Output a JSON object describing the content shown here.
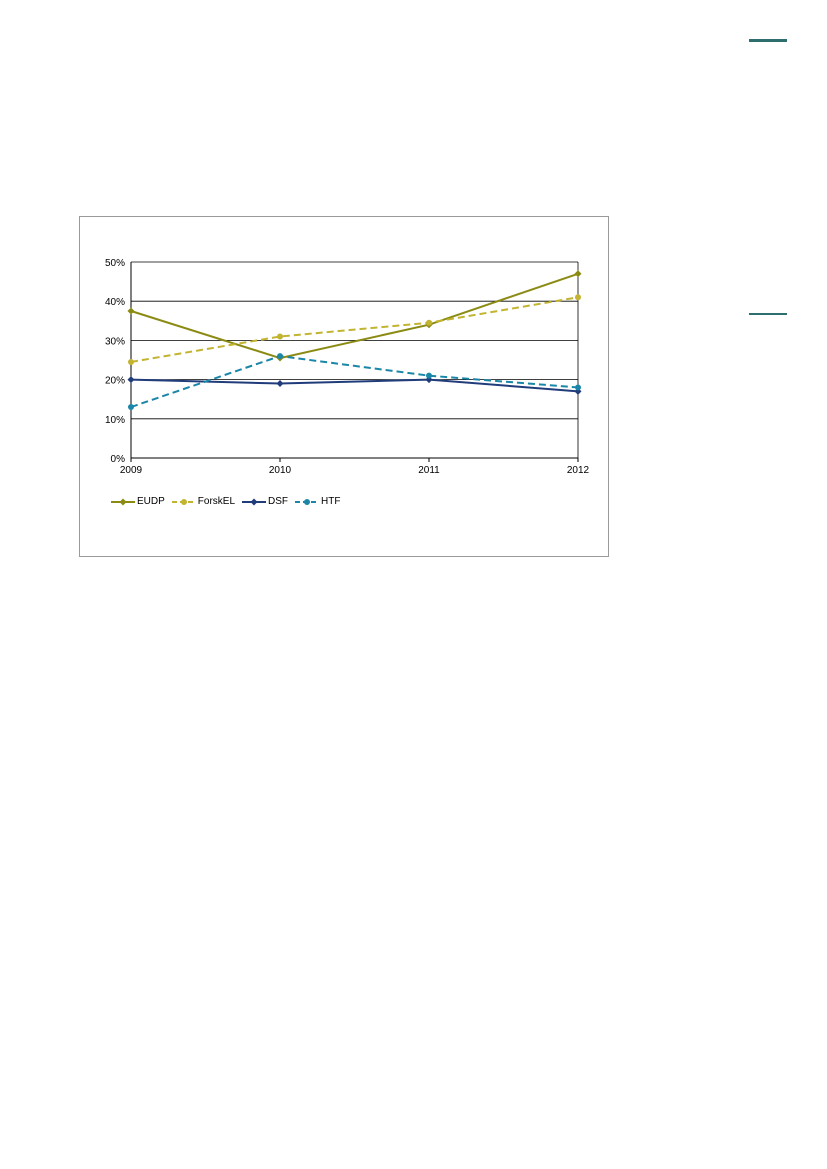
{
  "page": {
    "accent_color": "#2e6e6e"
  },
  "chart_data": {
    "type": "line",
    "x": [
      "2009",
      "2010",
      "2011",
      "2012"
    ],
    "ylim": [
      0,
      50
    ],
    "yticks": [
      "0%",
      "10%",
      "20%",
      "30%",
      "40%",
      "50%"
    ],
    "grid": true,
    "legend_position": "bottom-left",
    "series": [
      {
        "name": "EUDP",
        "values": [
          37.5,
          25.5,
          34,
          47
        ],
        "color": "#8b8b14",
        "dashed": false,
        "marker": "diamond"
      },
      {
        "name": "ForskEL",
        "values": [
          24.5,
          31,
          34.5,
          41
        ],
        "color": "#c2b430",
        "dashed": true,
        "marker": "circle"
      },
      {
        "name": "DSF",
        "values": [
          20,
          19,
          20,
          17
        ],
        "color": "#213c7a",
        "dashed": false,
        "marker": "diamond"
      },
      {
        "name": "HTF",
        "values": [
          13,
          26,
          21,
          18
        ],
        "color": "#1a86a8",
        "dashed": true,
        "marker": "circle"
      }
    ]
  }
}
